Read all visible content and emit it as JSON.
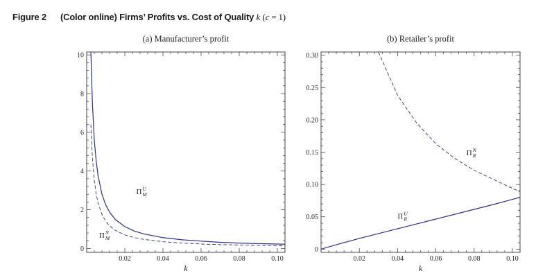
{
  "figure": {
    "label": "Figure 2",
    "caption_prefix": "(Color online) Firms’ Profits vs. Cost of Quality",
    "caption_var": "k",
    "caption_paren_open": "(",
    "caption_param": "c",
    "caption_eq": " = 1)"
  },
  "colors": {
    "line": "#2b2f86",
    "axis": "#333333",
    "text": "#222222"
  },
  "chart_data": [
    {
      "type": "line",
      "title": "(a) Manufacturer’s profit",
      "xlabel": "k",
      "ylabel": "",
      "xlim": [
        0,
        0.104
      ],
      "ylim": [
        -0.2,
        10.15
      ],
      "x_ticks": [
        0.02,
        0.04,
        0.06,
        0.08,
        0.1
      ],
      "x_tick_labels": [
        "0.02",
        "0.04",
        "0.06",
        "0.08",
        "0.10"
      ],
      "y_ticks": [
        0,
        2,
        4,
        6,
        8,
        10
      ],
      "y_tick_labels": [
        "0",
        "2",
        "4",
        "6",
        "8",
        "10"
      ],
      "grid": false,
      "series": [
        {
          "name": "Π_M^U",
          "name_base": "Π",
          "name_sup": "U",
          "name_sub": "M",
          "style": "solid",
          "x": [
            0.0022,
            0.003,
            0.004,
            0.005,
            0.006,
            0.008,
            0.01,
            0.012,
            0.015,
            0.02,
            0.025,
            0.03,
            0.04,
            0.05,
            0.06,
            0.07,
            0.08,
            0.09,
            0.1,
            0.104
          ],
          "y": [
            10.15,
            7.5,
            5.6,
            4.5,
            3.75,
            2.81,
            2.25,
            1.88,
            1.5,
            1.13,
            0.9,
            0.75,
            0.56,
            0.45,
            0.38,
            0.32,
            0.28,
            0.25,
            0.23,
            0.22
          ]
        },
        {
          "name": "Π_M^N",
          "name_base": "Π",
          "name_sup": "N",
          "name_sub": "M",
          "style": "dashed",
          "x": [
            0.0022,
            0.003,
            0.004,
            0.005,
            0.006,
            0.008,
            0.01,
            0.012,
            0.015,
            0.02,
            0.025,
            0.03,
            0.04,
            0.05,
            0.06,
            0.07,
            0.08,
            0.09,
            0.1,
            0.104
          ],
          "y": [
            6.4,
            4.69,
            3.52,
            2.81,
            2.34,
            1.76,
            1.41,
            1.17,
            0.94,
            0.7,
            0.56,
            0.47,
            0.35,
            0.28,
            0.23,
            0.2,
            0.18,
            0.16,
            0.14,
            0.14
          ]
        }
      ],
      "annotations": [
        {
          "series": 0,
          "x": 0.026,
          "y": 2.8
        },
        {
          "series": 1,
          "x": 0.0065,
          "y": 0.55
        }
      ]
    },
    {
      "type": "line",
      "title": "(b) Retailer’s profit",
      "xlabel": "k",
      "ylabel": "",
      "xlim": [
        0,
        0.104
      ],
      "ylim": [
        -0.005,
        0.305
      ],
      "x_ticks": [
        0.02,
        0.04,
        0.06,
        0.08,
        0.1
      ],
      "x_tick_labels": [
        "0.02",
        "0.04",
        "0.06",
        "0.08",
        "0.10"
      ],
      "y_ticks": [
        0,
        0.05,
        0.1,
        0.15,
        0.2,
        0.25,
        0.3
      ],
      "y_tick_labels": [
        "0",
        "0.05",
        "0.10",
        "0.15",
        "0.20",
        "0.25",
        "0.30"
      ],
      "grid": false,
      "series": [
        {
          "name": "Π_R^U",
          "name_base": "Π",
          "name_sup": "U",
          "name_sub": "R",
          "style": "solid",
          "x": [
            0.0,
            0.01,
            0.02,
            0.03,
            0.04,
            0.05,
            0.06,
            0.07,
            0.08,
            0.09,
            0.1,
            0.104
          ],
          "y": [
            0.0,
            0.0085,
            0.0165,
            0.024,
            0.0315,
            0.039,
            0.0465,
            0.054,
            0.0615,
            0.069,
            0.077,
            0.08
          ]
        },
        {
          "name": "Π_R^N",
          "name_base": "Π",
          "name_sup": "N",
          "name_sub": "R",
          "style": "dashed",
          "x": [
            0.03,
            0.04,
            0.05,
            0.06,
            0.07,
            0.08,
            0.09,
            0.1,
            0.104
          ],
          "y": [
            0.305,
            0.238,
            0.195,
            0.163,
            0.14,
            0.122,
            0.108,
            0.094,
            0.089
          ]
        }
      ],
      "annotations": [
        {
          "series": 1,
          "x": 0.076,
          "y": 0.145
        },
        {
          "series": 0,
          "x": 0.04,
          "y": 0.047
        }
      ]
    }
  ]
}
